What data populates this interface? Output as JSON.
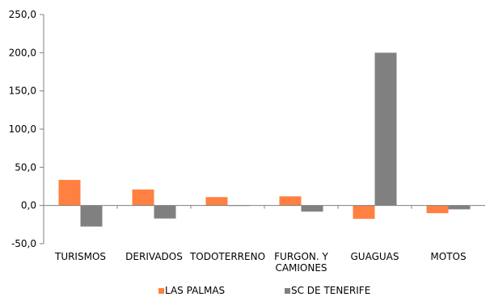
{
  "chart_data": {
    "type": "bar",
    "title": "",
    "xlabel": "",
    "ylabel": "",
    "categories": [
      [
        "TURISMOS"
      ],
      [
        "DERIVADOS"
      ],
      [
        "TODOTERRENO"
      ],
      [
        "FURGON. Y",
        "CAMIONES"
      ],
      [
        "GUAGUAS"
      ],
      [
        "MOTOS"
      ]
    ],
    "series": [
      {
        "name": "LAS PALMAS",
        "color": "#ff8040",
        "values": [
          33.5,
          21.0,
          11.0,
          12.0,
          -17.5,
          -10.0
        ]
      },
      {
        "name": "SC DE TENERIFE",
        "color": "#808080",
        "values": [
          -27.5,
          -17.0,
          0.5,
          -8.0,
          200.0,
          -5.0
        ]
      }
    ],
    "ylim": [
      -50,
      250
    ],
    "yticks": [
      -50,
      0,
      50,
      100,
      150,
      200,
      250
    ],
    "ytick_labels": [
      "-50,0",
      "0,0",
      "50,0",
      "100,0",
      "150,0",
      "200,0",
      "250,0"
    ],
    "grid": false,
    "legend_position": "bottom"
  }
}
